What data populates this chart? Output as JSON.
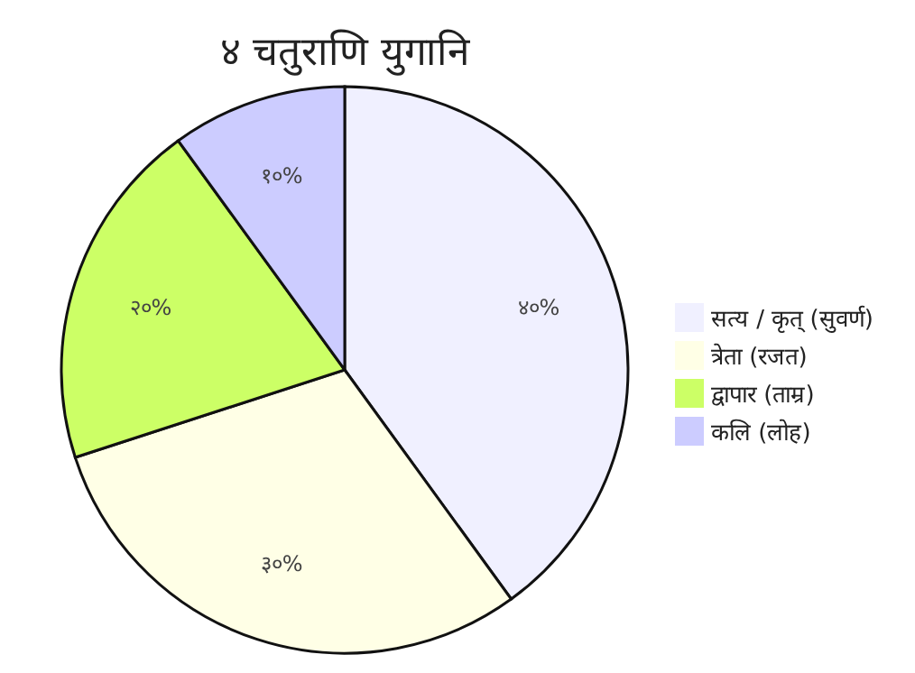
{
  "chart_data": {
    "type": "pie",
    "title": "४ चतुराणि युगानि",
    "categories": [
      "सत्य / कृत् (सुवर्ण)",
      "त्रेता (रजत)",
      "द्वापार (ताम्र)",
      "कलि (लोह)"
    ],
    "values": [
      40,
      30,
      20,
      10
    ],
    "value_labels": [
      "४०%",
      "३०%",
      "२०%",
      "१०%"
    ],
    "colors": [
      "#f0f0ff",
      "#ffffe6",
      "#ccff66",
      "#ccccff"
    ],
    "legend": "right"
  }
}
